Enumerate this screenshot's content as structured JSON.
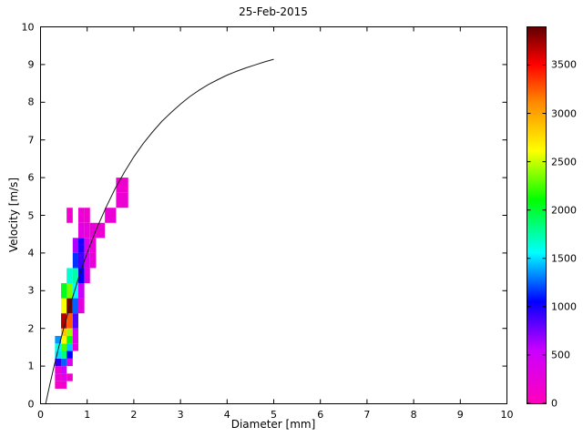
{
  "chart_data": {
    "type": "heatmap",
    "title": "25-Feb-2015",
    "xlabel": "Diameter [mm]",
    "ylabel": "Velocity [m/s]",
    "xlim": [
      0,
      10
    ],
    "ylim": [
      0,
      10
    ],
    "xticks": [
      0,
      1,
      2,
      3,
      4,
      5,
      6,
      7,
      8,
      9,
      10
    ],
    "yticks": [
      0,
      1,
      2,
      3,
      4,
      5,
      6,
      7,
      8,
      9,
      10
    ],
    "grid": false,
    "legend_position": "none",
    "colorbar": {
      "min": 0,
      "max": 3900,
      "ticks": [
        0,
        500,
        1000,
        1500,
        2000,
        2500,
        3000,
        3500
      ],
      "colormap_stops": [
        {
          "t": 0.0,
          "c": "#ff00bb"
        },
        {
          "t": 0.14,
          "c": "#cc00ff"
        },
        {
          "t": 0.27,
          "c": "#0000ff"
        },
        {
          "t": 0.4,
          "c": "#00ffff"
        },
        {
          "t": 0.54,
          "c": "#00ff00"
        },
        {
          "t": 0.67,
          "c": "#ffff00"
        },
        {
          "t": 0.8,
          "c": "#ff8800"
        },
        {
          "t": 0.9,
          "c": "#ff0000"
        },
        {
          "t": 1.0,
          "c": "#5e0000"
        }
      ]
    },
    "cells_format": [
      "diameter_min_mm",
      "diameter_max_mm",
      "velocity_min_ms",
      "velocity_max_ms",
      "count"
    ],
    "cells": [
      [
        0.31,
        0.44,
        0.4,
        0.6,
        120
      ],
      [
        0.44,
        0.56,
        0.4,
        0.6,
        160
      ],
      [
        0.31,
        0.44,
        0.6,
        0.8,
        210
      ],
      [
        0.44,
        0.56,
        0.6,
        0.8,
        320
      ],
      [
        0.56,
        0.69,
        0.6,
        0.8,
        140
      ],
      [
        0.31,
        0.44,
        0.8,
        1.0,
        260
      ],
      [
        0.44,
        0.56,
        0.8,
        1.0,
        520
      ],
      [
        0.31,
        0.44,
        1.0,
        1.2,
        950
      ],
      [
        0.44,
        0.56,
        1.0,
        1.2,
        1250
      ],
      [
        0.56,
        0.69,
        1.0,
        1.2,
        400
      ],
      [
        0.31,
        0.44,
        1.2,
        1.4,
        1500
      ],
      [
        0.44,
        0.56,
        1.2,
        1.4,
        1850
      ],
      [
        0.56,
        0.69,
        1.2,
        1.4,
        1050
      ],
      [
        0.31,
        0.44,
        1.4,
        1.6,
        1600
      ],
      [
        0.44,
        0.56,
        1.4,
        1.6,
        2250
      ],
      [
        0.56,
        0.69,
        1.4,
        1.6,
        1450
      ],
      [
        0.69,
        0.81,
        1.4,
        1.6,
        250
      ],
      [
        0.31,
        0.44,
        1.6,
        1.8,
        1350
      ],
      [
        0.44,
        0.56,
        1.6,
        1.8,
        2650
      ],
      [
        0.56,
        0.69,
        1.6,
        1.8,
        2050
      ],
      [
        0.69,
        0.81,
        1.6,
        1.8,
        350
      ],
      [
        0.44,
        0.56,
        1.8,
        2.0,
        2850
      ],
      [
        0.56,
        0.69,
        1.8,
        2.0,
        2400
      ],
      [
        0.69,
        0.81,
        1.8,
        2.0,
        450
      ],
      [
        0.44,
        0.56,
        2.0,
        2.4,
        3700
      ],
      [
        0.56,
        0.69,
        2.0,
        2.4,
        3250
      ],
      [
        0.69,
        0.81,
        2.0,
        2.4,
        850
      ],
      [
        0.44,
        0.56,
        2.4,
        2.8,
        2600
      ],
      [
        0.56,
        0.69,
        2.4,
        2.8,
        3850
      ],
      [
        0.69,
        0.81,
        2.4,
        2.8,
        1250
      ],
      [
        0.81,
        0.94,
        2.4,
        2.8,
        300
      ],
      [
        0.44,
        0.56,
        2.8,
        3.2,
        2050
      ],
      [
        0.56,
        0.69,
        2.8,
        3.2,
        2350
      ],
      [
        0.69,
        0.81,
        2.8,
        3.2,
        1550
      ],
      [
        0.81,
        0.94,
        2.8,
        3.2,
        550
      ],
      [
        0.56,
        0.69,
        3.2,
        3.6,
        1650
      ],
      [
        0.69,
        0.81,
        3.2,
        3.6,
        1750
      ],
      [
        0.81,
        0.94,
        3.2,
        3.6,
        1050
      ],
      [
        0.94,
        1.06,
        3.2,
        3.6,
        320
      ],
      [
        0.69,
        0.81,
        3.6,
        4.0,
        1150
      ],
      [
        0.81,
        0.94,
        3.6,
        4.0,
        900
      ],
      [
        0.94,
        1.06,
        3.6,
        4.0,
        420
      ],
      [
        1.06,
        1.19,
        3.6,
        4.0,
        230
      ],
      [
        0.69,
        0.81,
        4.0,
        4.4,
        620
      ],
      [
        0.81,
        0.94,
        4.0,
        4.4,
        980
      ],
      [
        0.94,
        1.06,
        4.0,
        4.4,
        360
      ],
      [
        1.06,
        1.19,
        4.0,
        4.4,
        240
      ],
      [
        0.81,
        0.94,
        4.4,
        4.8,
        310
      ],
      [
        0.94,
        1.06,
        4.4,
        4.8,
        260
      ],
      [
        1.06,
        1.19,
        4.4,
        4.8,
        220
      ],
      [
        1.19,
        1.38,
        4.4,
        4.8,
        200
      ],
      [
        0.56,
        0.69,
        4.8,
        5.2,
        150
      ],
      [
        0.81,
        0.94,
        4.8,
        5.2,
        190
      ],
      [
        0.94,
        1.06,
        4.8,
        5.2,
        170
      ],
      [
        1.38,
        1.62,
        4.8,
        5.2,
        210
      ],
      [
        1.62,
        1.88,
        5.2,
        5.6,
        190
      ],
      [
        1.62,
        1.88,
        5.6,
        6.0,
        160
      ]
    ],
    "curve": {
      "name": "terminal-velocity-curve",
      "color": "#1a1a1a",
      "points": [
        [
          0.11,
          0.0
        ],
        [
          0.2,
          0.51
        ],
        [
          0.3,
          1.05
        ],
        [
          0.4,
          1.55
        ],
        [
          0.5,
          2.02
        ],
        [
          0.6,
          2.46
        ],
        [
          0.7,
          2.87
        ],
        [
          0.8,
          3.28
        ],
        [
          0.9,
          3.65
        ],
        [
          1.0,
          4.0
        ],
        [
          1.2,
          4.64
        ],
        [
          1.4,
          5.2
        ],
        [
          1.6,
          5.71
        ],
        [
          1.8,
          6.15
        ],
        [
          2.0,
          6.55
        ],
        [
          2.2,
          6.9
        ],
        [
          2.4,
          7.21
        ],
        [
          2.6,
          7.49
        ],
        [
          2.8,
          7.73
        ],
        [
          3.0,
          7.95
        ],
        [
          3.2,
          8.15
        ],
        [
          3.4,
          8.32
        ],
        [
          3.6,
          8.47
        ],
        [
          3.8,
          8.6
        ],
        [
          4.0,
          8.72
        ],
        [
          4.2,
          8.82
        ],
        [
          4.4,
          8.91
        ],
        [
          4.6,
          8.99
        ],
        [
          4.8,
          9.07
        ],
        [
          5.0,
          9.14
        ]
      ]
    }
  }
}
